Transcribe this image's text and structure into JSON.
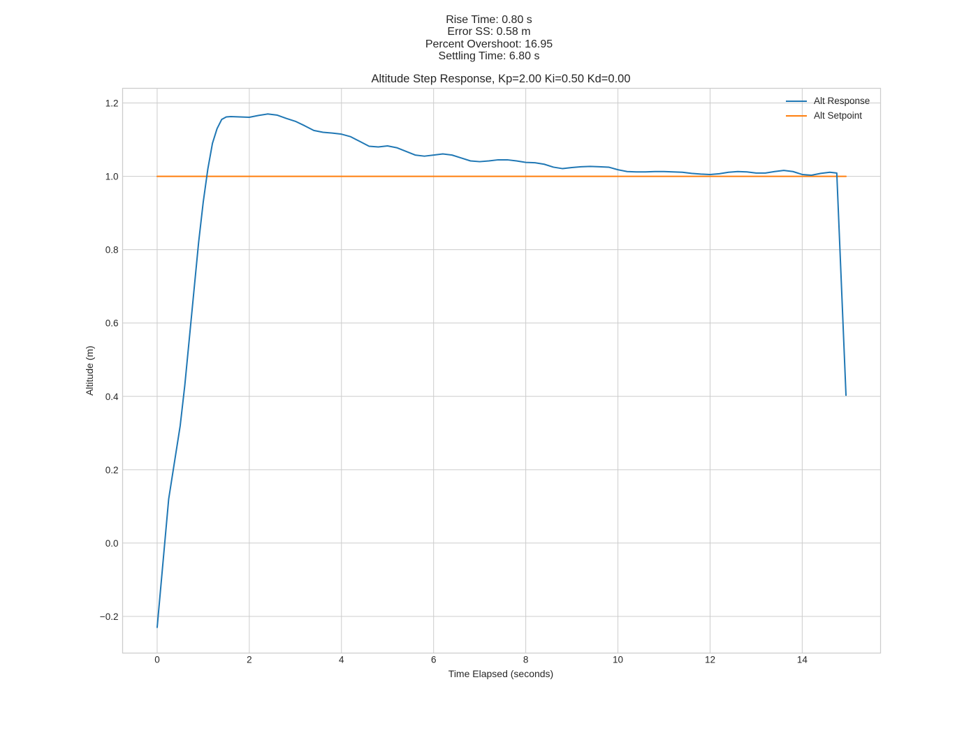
{
  "figure": {
    "suptitle_lines": [
      "Rise Time: 0.80 s",
      "Error SS: 0.58 m",
      "Percent Overshoot: 16.95",
      "Settling Time: 6.80 s"
    ]
  },
  "chart_data": {
    "type": "line",
    "title": "Altitude Step Response, Kp=2.00 Ki=0.50 Kd=0.00",
    "xlabel": "Time Elapsed (seconds)",
    "ylabel": "Altitude (m)",
    "xlim": [
      -0.75,
      15.7
    ],
    "ylim": [
      -0.3,
      1.24
    ],
    "xticks": [
      0,
      2,
      4,
      6,
      8,
      10,
      12,
      14
    ],
    "xtick_labels": [
      "0",
      "2",
      "4",
      "6",
      "8",
      "10",
      "12",
      "14"
    ],
    "yticks": [
      -0.2,
      0.0,
      0.2,
      0.4,
      0.6,
      0.8,
      1.0,
      1.2
    ],
    "ytick_labels": [
      "−0.2",
      "0.0",
      "0.2",
      "0.4",
      "0.6",
      "0.8",
      "1.0",
      "1.2"
    ],
    "grid": true,
    "legend": {
      "placement": "top-right"
    },
    "series": [
      {
        "name": "Alt Response",
        "color": "#1f77b4",
        "x": [
          0,
          0.25,
          0.35,
          0.5,
          0.6,
          0.7,
          0.8,
          0.9,
          1.0,
          1.1,
          1.2,
          1.3,
          1.4,
          1.5,
          1.6,
          1.8,
          2.0,
          2.2,
          2.4,
          2.6,
          2.8,
          3.0,
          3.2,
          3.4,
          3.6,
          3.8,
          4.0,
          4.2,
          4.4,
          4.6,
          4.8,
          5.0,
          5.2,
          5.4,
          5.6,
          5.8,
          6.0,
          6.2,
          6.4,
          6.6,
          6.8,
          7.0,
          7.2,
          7.4,
          7.6,
          7.8,
          8.0,
          8.2,
          8.4,
          8.6,
          8.8,
          9.0,
          9.2,
          9.4,
          9.6,
          9.8,
          10.0,
          10.2,
          10.4,
          10.6,
          10.8,
          11.0,
          11.2,
          11.4,
          11.6,
          11.8,
          12.0,
          12.2,
          12.4,
          12.6,
          12.8,
          13.0,
          13.2,
          13.4,
          13.6,
          13.8,
          14.0,
          14.2,
          14.4,
          14.6,
          14.75,
          14.95
        ],
        "y": [
          -0.23,
          0.12,
          0.2,
          0.32,
          0.43,
          0.56,
          0.69,
          0.82,
          0.93,
          1.02,
          1.09,
          1.13,
          1.155,
          1.162,
          1.163,
          1.162,
          1.161,
          1.166,
          1.17,
          1.167,
          1.158,
          1.15,
          1.138,
          1.125,
          1.12,
          1.118,
          1.115,
          1.108,
          1.095,
          1.082,
          1.08,
          1.083,
          1.078,
          1.068,
          1.058,
          1.055,
          1.058,
          1.061,
          1.058,
          1.05,
          1.042,
          1.04,
          1.042,
          1.045,
          1.045,
          1.042,
          1.038,
          1.037,
          1.033,
          1.025,
          1.021,
          1.024,
          1.026,
          1.027,
          1.026,
          1.025,
          1.018,
          1.013,
          1.012,
          1.012,
          1.013,
          1.013,
          1.012,
          1.011,
          1.008,
          1.006,
          1.005,
          1.007,
          1.011,
          1.013,
          1.012,
          1.009,
          1.009,
          1.013,
          1.016,
          1.013,
          1.005,
          1.003,
          1.008,
          1.011,
          1.009,
          0.403
        ]
      },
      {
        "name": "Alt Setpoint",
        "color": "#ff7f0e",
        "x": [
          0,
          14.95
        ],
        "y": [
          1.0,
          1.0
        ]
      }
    ]
  }
}
